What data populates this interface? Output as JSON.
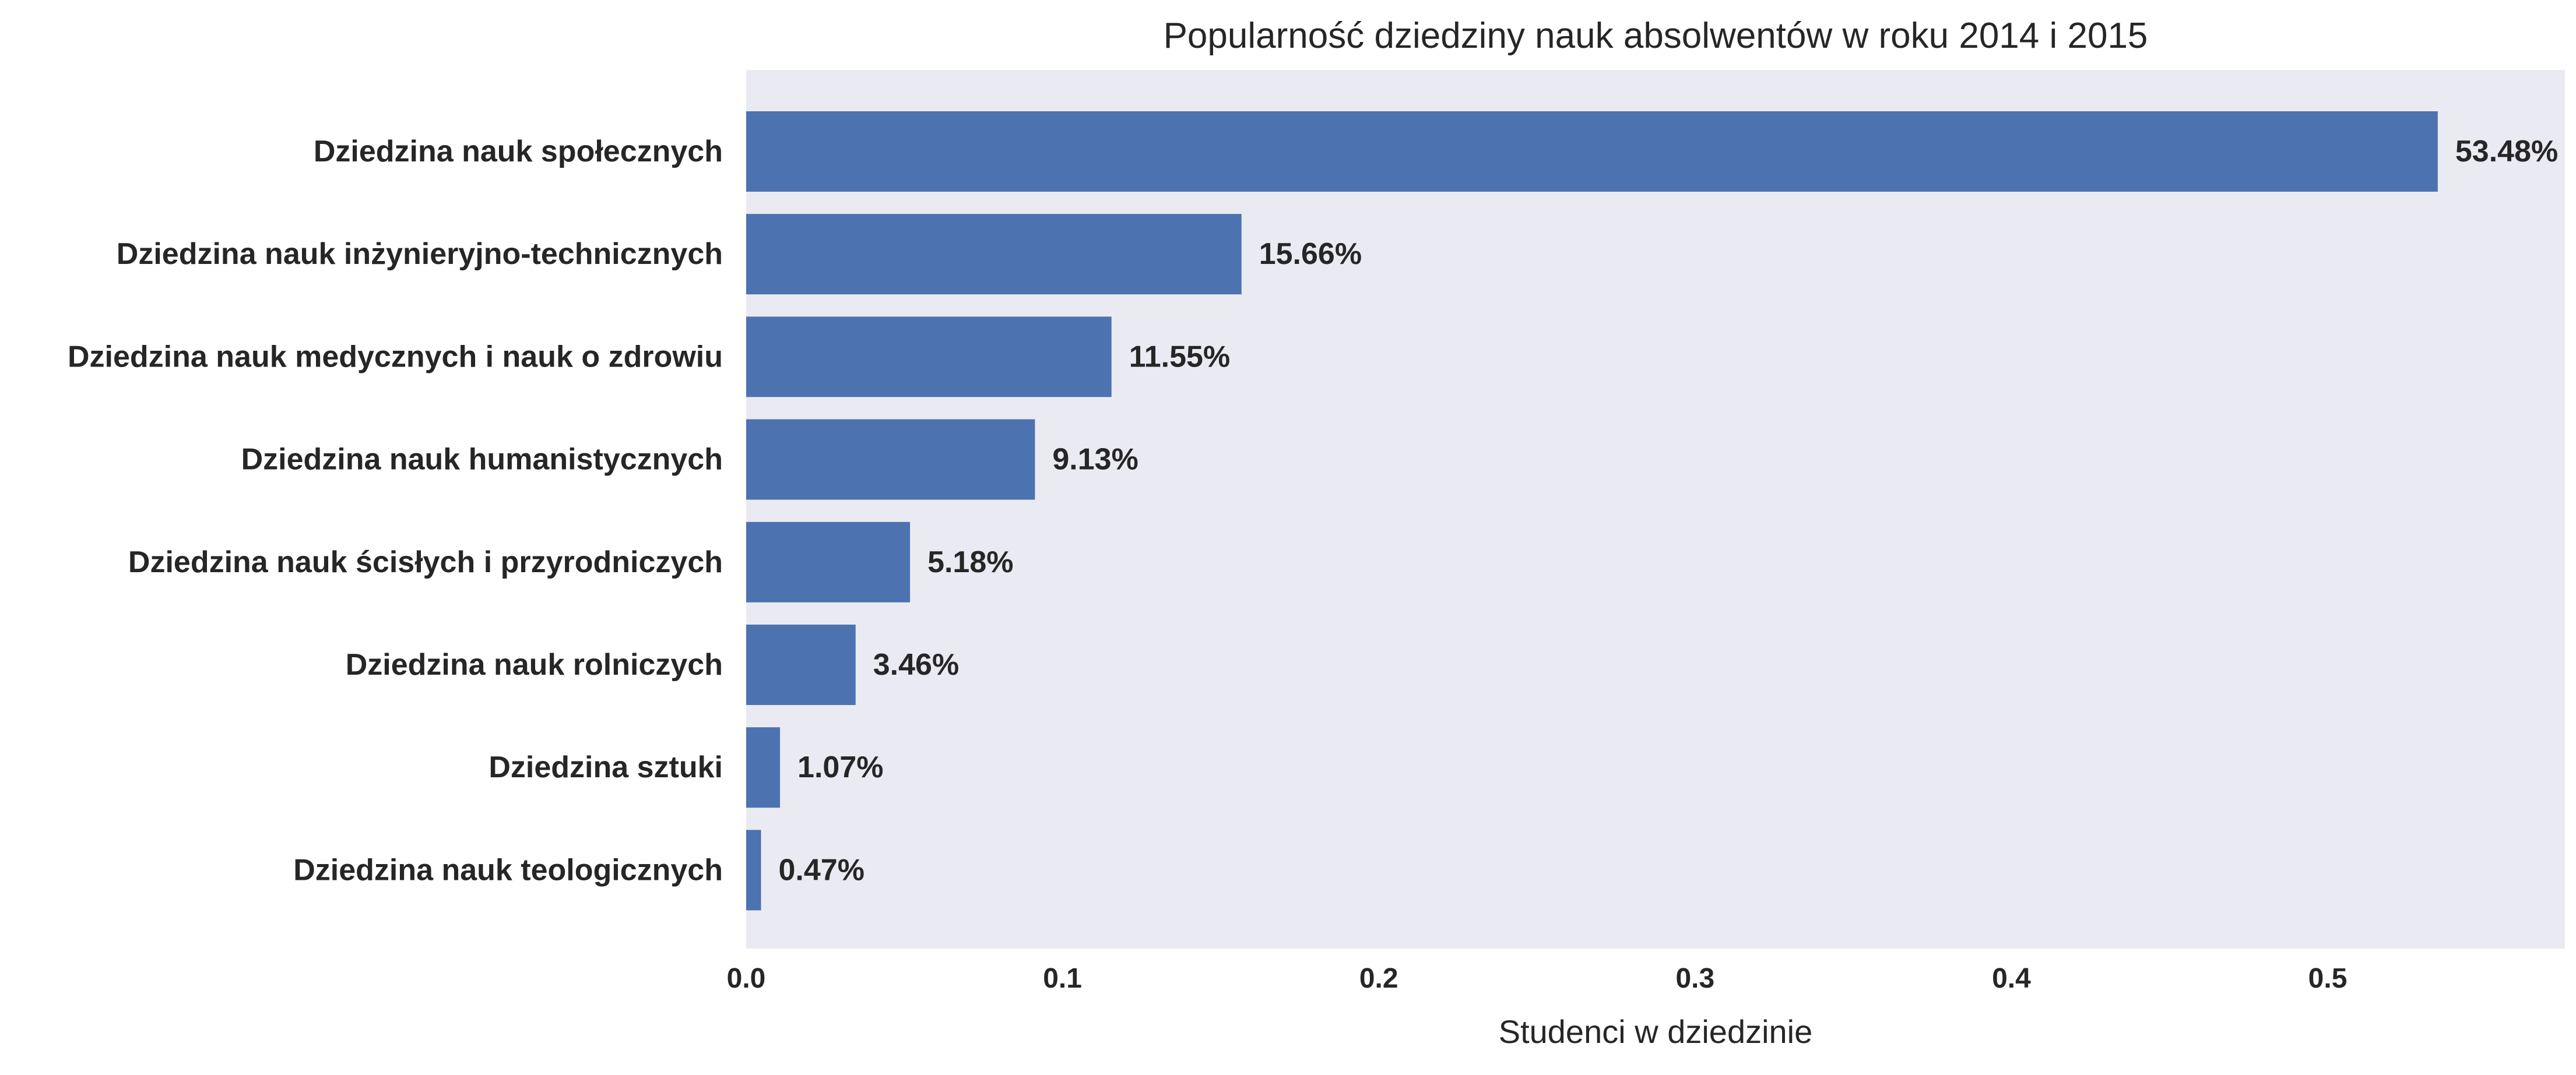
{
  "chart_data": {
    "type": "bar",
    "orientation": "horizontal",
    "title": "Popularność dziedziny nauk absolwentów w roku 2014 i 2015",
    "xlabel": "Studenci w dziedzinie",
    "ylabel": "",
    "xlim": [
      0,
      0.575
    ],
    "xticks": [
      0.0,
      0.1,
      0.2,
      0.3,
      0.4,
      0.5
    ],
    "xtick_labels": [
      "0.0",
      "0.1",
      "0.2",
      "0.3",
      "0.4",
      "0.5"
    ],
    "grid": false,
    "legend": "none",
    "categories": [
      "Dziedzina nauk społecznych",
      "Dziedzina nauk inżynieryjno-technicznych",
      "Dziedzina nauk medycznych i nauk o zdrowiu",
      "Dziedzina nauk humanistycznych",
      "Dziedzina nauk ścisłych i przyrodniczych",
      "Dziedzina nauk rolniczych",
      "Dziedzina sztuki",
      "Dziedzina nauk teologicznych"
    ],
    "values": [
      0.5348,
      0.1566,
      0.1155,
      0.0913,
      0.0518,
      0.0346,
      0.0107,
      0.0047
    ],
    "data_labels": [
      "53.48%",
      "15.66%",
      "11.55%",
      "9.13%",
      "5.18%",
      "3.46%",
      "1.07%",
      "0.47%"
    ]
  },
  "colors": {
    "bar": "#4c72b0",
    "plot_background": "#eaeaf2",
    "text": "#262626",
    "page_background": "#ffffff"
  }
}
